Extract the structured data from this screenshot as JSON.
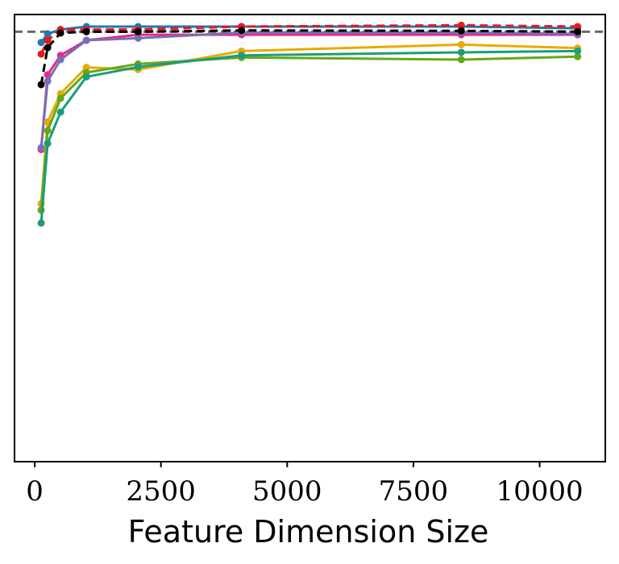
{
  "chart_data": {
    "type": "line",
    "title": "",
    "xlabel": "Feature Dimension Size",
    "ylabel": "",
    "xlim": [
      -400,
      11300
    ],
    "ylim": [
      0,
      1.04
    ],
    "x_ticks": [
      0,
      2500,
      5000,
      7500,
      10000
    ],
    "x_tick_labels": [
      "0",
      "2500",
      "5000",
      "7500",
      "10000"
    ],
    "y_ticks_visible": false,
    "grid": false,
    "legend": "none",
    "reference_line": {
      "y": 1.0,
      "style": "dashed",
      "color": "#696969"
    },
    "series": [
      {
        "color": "#1f77b4",
        "dash": false,
        "points": [
          [
            128,
            0.975
          ],
          [
            256,
            0.995
          ],
          [
            512,
            1.005
          ],
          [
            1024,
            1.012
          ],
          [
            2048,
            1.012
          ],
          [
            4096,
            1.012
          ],
          [
            8448,
            1.012
          ],
          [
            10752,
            1.008
          ]
        ]
      },
      {
        "color": "#e31a1c",
        "dash": true,
        "points": [
          [
            128,
            0.948
          ],
          [
            256,
            0.98
          ],
          [
            512,
            1.005
          ],
          [
            1024,
            1.005
          ],
          [
            2048,
            1.005
          ],
          [
            4096,
            1.012
          ],
          [
            8448,
            1.015
          ],
          [
            10752,
            1.012
          ]
        ]
      },
      {
        "color": "#000000",
        "dash": true,
        "points": [
          [
            128,
            0.877
          ],
          [
            256,
            0.963
          ],
          [
            512,
            0.997
          ],
          [
            1024,
            1.0
          ],
          [
            2048,
            1.0
          ],
          [
            4096,
            1.003
          ],
          [
            8448,
            1.002
          ],
          [
            10752,
            1.0
          ]
        ]
      },
      {
        "color": "#e7298a",
        "dash": false,
        "points": [
          [
            128,
            0.726
          ],
          [
            256,
            0.9
          ],
          [
            512,
            0.945
          ],
          [
            1024,
            0.98
          ],
          [
            2048,
            0.993
          ],
          [
            4096,
            0.993
          ],
          [
            8448,
            0.993
          ],
          [
            10752,
            0.993
          ]
        ]
      },
      {
        "color": "#7570b3",
        "dash": false,
        "points": [
          [
            128,
            0.73
          ],
          [
            256,
            0.885
          ],
          [
            512,
            0.935
          ],
          [
            1024,
            0.98
          ],
          [
            2048,
            0.985
          ],
          [
            4096,
            0.998
          ],
          [
            8448,
            0.998
          ],
          [
            10752,
            0.995
          ]
        ]
      },
      {
        "color": "#e6ab02",
        "dash": false,
        "points": [
          [
            128,
            0.6
          ],
          [
            256,
            0.79
          ],
          [
            512,
            0.856
          ],
          [
            1024,
            0.917
          ],
          [
            2048,
            0.912
          ],
          [
            4096,
            0.955
          ],
          [
            8448,
            0.97
          ],
          [
            10752,
            0.962
          ]
        ]
      },
      {
        "color": "#66a61e",
        "dash": false,
        "points": [
          [
            128,
            0.585
          ],
          [
            256,
            0.77
          ],
          [
            512,
            0.845
          ],
          [
            1024,
            0.905
          ],
          [
            2048,
            0.925
          ],
          [
            4096,
            0.94
          ],
          [
            8448,
            0.935
          ],
          [
            10752,
            0.942
          ]
        ]
      },
      {
        "color": "#1b9e77",
        "dash": false,
        "points": [
          [
            128,
            0.555
          ],
          [
            256,
            0.74
          ],
          [
            512,
            0.813
          ],
          [
            1024,
            0.895
          ],
          [
            2048,
            0.918
          ],
          [
            4096,
            0.945
          ],
          [
            8448,
            0.952
          ],
          [
            10752,
            0.955
          ]
        ]
      }
    ]
  }
}
